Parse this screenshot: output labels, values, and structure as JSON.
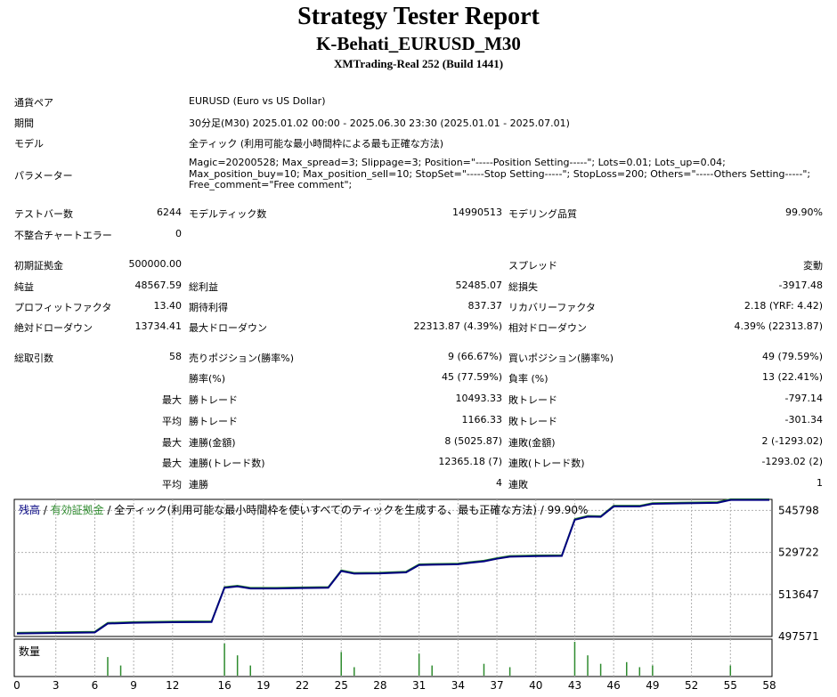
{
  "report": {
    "title": "Strategy Tester Report",
    "subtitle": "K-Behati_EURUSD_M30",
    "server": "XMTrading-Real 252 (Build 1441)"
  },
  "info": {
    "pair_label": "通貨ペア",
    "pair_value": "EURUSD (Euro vs US Dollar)",
    "period_label": "期間",
    "period_value": "30分足(M30) 2025.01.02 00:00 - 2025.06.30 23:30 (2025.01.01 - 2025.07.01)",
    "model_label": "モデル",
    "model_value": "全ティック (利用可能な最小時間枠による最も正確な方法)",
    "params_label": "パラメーター",
    "params_value": "Magic=20200528; Max_spread=3; Slippage=3; Position=\"-----Position Setting-----\"; Lots=0.01; Lots_up=0.04; Max_position_buy=10; Max_position_sell=10; StopSet=\"-----Stop Setting-----\"; StopLoss=200; Others=\"-----Others Setting-----\"; Free_comment=\"Free comment\";"
  },
  "stats": {
    "bars_label": "テストバー数",
    "bars_value": "6244",
    "ticks_label": "モデルティック数",
    "ticks_value": "14990513",
    "quality_label": "モデリング品質",
    "quality_value": "99.90%",
    "mismatch_label": "不整合チャートエラー",
    "mismatch_value": "0",
    "deposit_label": "初期証拠金",
    "deposit_value": "500000.00",
    "spread_label": "スプレッド",
    "spread_value": "変動",
    "net_label": "純益",
    "net_value": "48567.59",
    "gross_profit_label": "総利益",
    "gross_profit_value": "52485.07",
    "gross_loss_label": "総損失",
    "gross_loss_value": "-3917.48",
    "pf_label": "プロフィットファクタ",
    "pf_value": "13.40",
    "expected_label": "期待利得",
    "expected_value": "837.37",
    "recovery_label": "リカバリーファクタ",
    "recovery_value": "2.18 (YRF: 4.42)",
    "abs_dd_label": "絶対ドローダウン",
    "abs_dd_value": "13734.41",
    "max_dd_label": "最大ドローダウン",
    "max_dd_value": "22313.87 (4.39%)",
    "rel_dd_label": "相対ドローダウン",
    "rel_dd_value": "4.39% (22313.87)",
    "trades_label": "総取引数",
    "trades_value": "58",
    "short_label": "売りポジション(勝率%)",
    "short_value": "9 (66.67%)",
    "long_label": "買いポジション(勝率%)",
    "long_value": "49 (79.59%)",
    "win_rate_label": "勝率(%)",
    "win_rate_value": "45 (77.59%)",
    "loss_rate_label": "負率 (%)",
    "loss_rate_value": "13 (22.41%)",
    "max_label": "最大",
    "avg_label": "平均",
    "win_trade_label": "勝トレード",
    "loss_trade_label": "敗トレード",
    "max_win_value": "10493.33",
    "max_loss_value": "-797.14",
    "avg_win_value": "1166.33",
    "avg_loss_value": "-301.34",
    "cons_win_money_label": "連勝(金額)",
    "cons_win_money_value": "8 (5025.87)",
    "cons_loss_money_label": "連敗(金額)",
    "cons_loss_money_value": "2 (-1293.02)",
    "cons_win_count_label": "連勝(トレード数)",
    "cons_win_count_value": "12365.18 (7)",
    "cons_loss_count_label": "連敗(トレード数)",
    "cons_loss_count_value": "-1293.02 (2)",
    "avg_cons_win_label": "連勝",
    "avg_cons_win_value": "4",
    "avg_cons_loss_label": "連敗",
    "avg_cons_loss_value": "1"
  },
  "chart_data": {
    "type": "line",
    "legend": {
      "balance": "残高",
      "sep1": " / ",
      "equity": "有効証拠金",
      "rest": " / 全ティック(利用可能な最小時間枠を使いすべてのティックを生成する、最も正確な方法) / 99.90%"
    },
    "volume_label": "数量",
    "ylim": [
      497571,
      550000
    ],
    "yticks": [
      "545798",
      "529722",
      "513647",
      "497571"
    ],
    "xticks": [
      "0",
      "3",
      "6",
      "9",
      "12",
      "16",
      "19",
      "22",
      "25",
      "28",
      "31",
      "34",
      "37",
      "40",
      "43",
      "46",
      "49",
      "52",
      "55",
      "58"
    ],
    "colors": {
      "balance": "#000080",
      "equity": "#2e8b2e",
      "volume": "#2e8b2e"
    },
    "balance": [
      [
        0,
        498700
      ],
      [
        6,
        499100
      ],
      [
        7,
        502500
      ],
      [
        9,
        502800
      ],
      [
        12,
        503000
      ],
      [
        15,
        503100
      ],
      [
        16,
        516200
      ],
      [
        17,
        516700
      ],
      [
        18,
        515900
      ],
      [
        20,
        515900
      ],
      [
        22,
        516100
      ],
      [
        24,
        516200
      ],
      [
        25,
        522600
      ],
      [
        26,
        521600
      ],
      [
        28,
        521700
      ],
      [
        30,
        522100
      ],
      [
        31,
        524900
      ],
      [
        32,
        525000
      ],
      [
        34,
        525200
      ],
      [
        35,
        525800
      ],
      [
        36,
        526300
      ],
      [
        37,
        527300
      ],
      [
        38,
        528100
      ],
      [
        40,
        528300
      ],
      [
        42,
        528400
      ],
      [
        43,
        542200
      ],
      [
        44,
        543400
      ],
      [
        45,
        543300
      ],
      [
        46,
        547300
      ],
      [
        48,
        547300
      ],
      [
        49,
        548300
      ],
      [
        54,
        548700
      ],
      [
        55,
        549800
      ],
      [
        58,
        549800
      ]
    ],
    "volume": [
      [
        7,
        0.55
      ],
      [
        8,
        0.3
      ],
      [
        16,
        0.95
      ],
      [
        17,
        0.6
      ],
      [
        18,
        0.3
      ],
      [
        25,
        0.7
      ],
      [
        26,
        0.25
      ],
      [
        31,
        0.65
      ],
      [
        32,
        0.3
      ],
      [
        36,
        0.35
      ],
      [
        38,
        0.25
      ],
      [
        43,
        1.0
      ],
      [
        44,
        0.6
      ],
      [
        45,
        0.35
      ],
      [
        47,
        0.4
      ],
      [
        48,
        0.25
      ],
      [
        49,
        0.3
      ],
      [
        55,
        0.3
      ]
    ]
  }
}
